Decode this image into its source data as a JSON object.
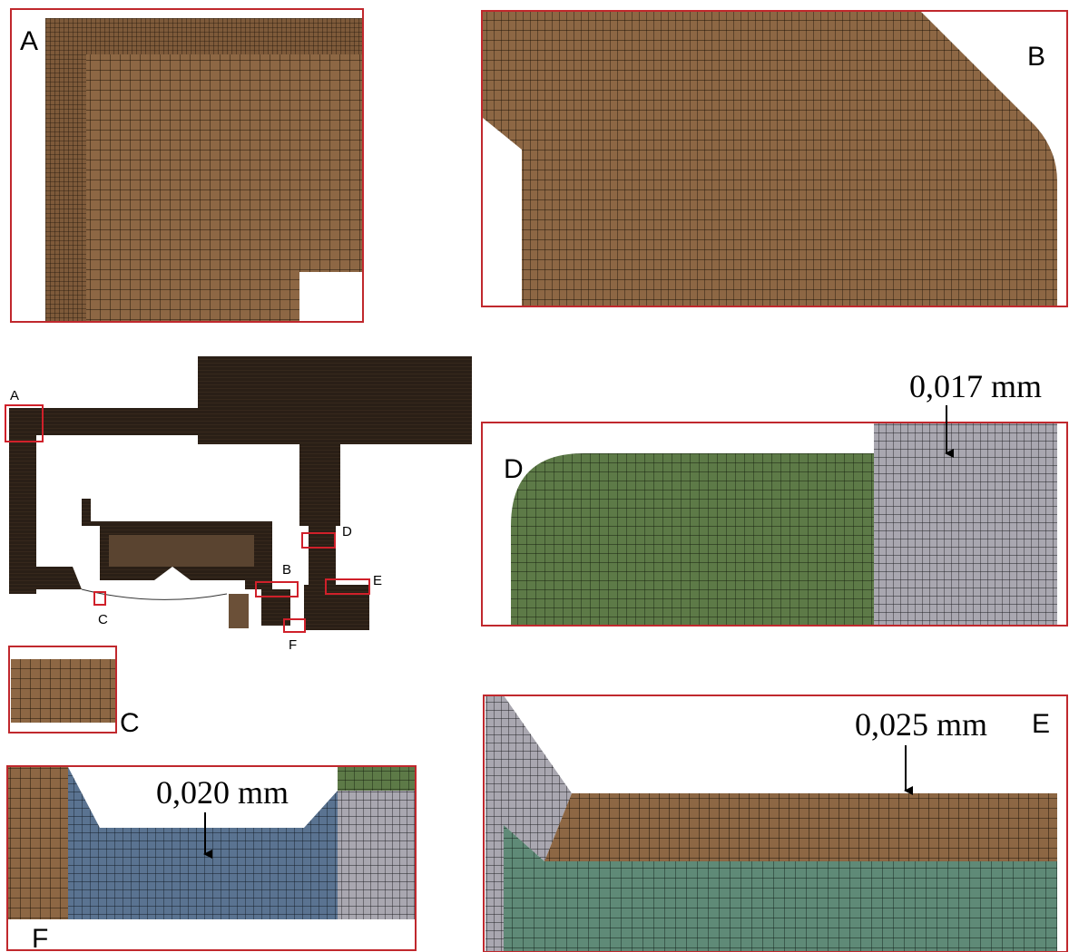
{
  "panels": {
    "A": {
      "label": "A"
    },
    "B": {
      "label": "B"
    },
    "C": {
      "label": "C"
    },
    "D": {
      "label": "D",
      "annotation": "0,017 mm"
    },
    "E": {
      "label": "E",
      "annotation": "0,025 mm"
    },
    "F": {
      "label": "F",
      "annotation": "0,020 mm"
    }
  },
  "overview": {
    "labels": [
      "A",
      "B",
      "C",
      "D",
      "E",
      "F"
    ]
  }
}
